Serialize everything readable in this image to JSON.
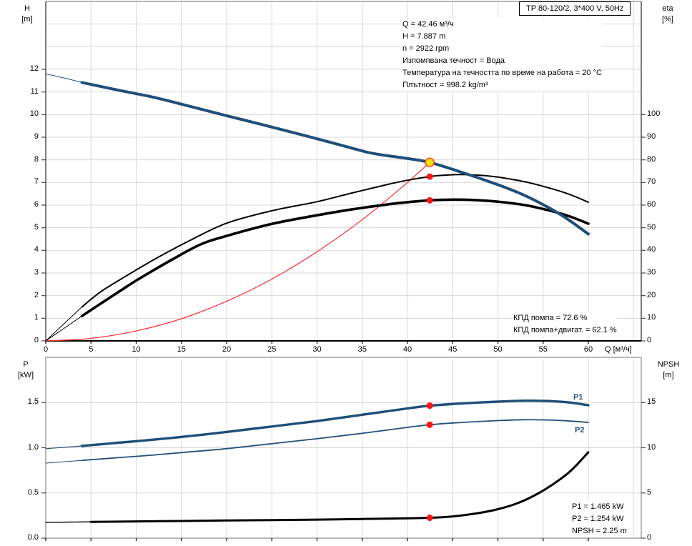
{
  "title_box": "TP 80-120/2, 3*400 V, 50Hz",
  "duty_info": {
    "lines": [
      "Q = 42.46 м³/ч",
      "H = 7.887 m",
      "n = 2922 rpm",
      "Изпомпвана течност = Вода",
      "Температура на течността по време на работа = 20 °C",
      "Плътност = 998.2 kg/m³"
    ]
  },
  "efficiency_info": {
    "lines": [
      "КПД помпа = 72.6 %",
      "КПД помпа+двигат. = 62.1 %"
    ]
  },
  "power_info": {
    "lines": [
      "P1 = 1.465 kW",
      "P2 = 1.254 kW",
      "NPSH = 2.25 m"
    ]
  },
  "curve_labels": {
    "p1": "P1",
    "p2": "P2"
  },
  "axis_titles": {
    "h": [
      "H",
      "[m]"
    ],
    "eta": [
      "eta",
      "[%]"
    ],
    "p": [
      "P",
      "[kW]"
    ],
    "npsh": [
      "NPSH",
      "[m]"
    ],
    "q": "Q [м³/ч]"
  },
  "colors": {
    "curve_blue": "#1f4e79",
    "curve_black": "#000000",
    "curve_red": "#ff2a2a",
    "dot_red": "#ff1414",
    "dot_yellow": "#ffdf00",
    "dot_yellow_stroke": "#ff4633",
    "grid": "#d8d8d8",
    "axis_dark": "#454545",
    "border_gray": "#8a8a8a",
    "label_blue": "#1f4e79",
    "text": "#000000"
  },
  "chart_data": [
    {
      "type": "line",
      "title": "TP 80-120/2, 3*400 V, 50Hz",
      "xlabel": "Q [м³/ч]",
      "ylabel_left": "H [m]",
      "ylabel_right": "eta [%]",
      "xlim": [
        0,
        65.8
      ],
      "ylim_left": [
        0,
        15
      ],
      "ylim_right": [
        0,
        150
      ],
      "grid": true,
      "x_ticks": [
        0,
        5,
        10,
        15,
        20,
        25,
        30,
        35,
        40,
        45,
        50,
        55,
        60
      ],
      "x_grid_values": [
        5,
        10,
        15,
        20,
        25,
        30,
        35,
        40,
        45,
        50,
        55,
        60,
        65
      ],
      "y_ticks_left": [
        0,
        1,
        2,
        3,
        4,
        5,
        6,
        7,
        8,
        9,
        10,
        11,
        12
      ],
      "y_grid_values_left": [
        1,
        2,
        3,
        4,
        5,
        6,
        7,
        8,
        9,
        10,
        11,
        12,
        13,
        14
      ],
      "y_ticks_right": [
        0,
        10,
        20,
        30,
        40,
        50,
        60,
        70,
        80,
        90,
        100
      ],
      "series": [
        {
          "name": "system-curve",
          "axis": "left",
          "color_key": "curve_red",
          "width": 1.2,
          "points": [
            [
              0,
              0
            ],
            [
              5,
              0.11
            ],
            [
              10,
              0.44
            ],
            [
              15,
              0.98
            ],
            [
              20,
              1.75
            ],
            [
              25,
              2.73
            ],
            [
              30,
              3.94
            ],
            [
              35,
              5.36
            ],
            [
              40,
              7.0
            ],
            [
              42.46,
              7.887
            ]
          ]
        },
        {
          "name": "efficiency-pump",
          "axis": "right",
          "color_key": "curve_black",
          "width": 2,
          "thin_until": 4,
          "thin_width": 1,
          "points": [
            [
              0,
              0
            ],
            [
              2,
              7.5
            ],
            [
              4,
              15
            ],
            [
              6,
              21.5
            ],
            [
              8.4,
              27.5
            ],
            [
              12,
              36
            ],
            [
              16,
              44.5
            ],
            [
              20,
              52
            ],
            [
              25,
              57.5
            ],
            [
              30,
              61.5
            ],
            [
              34,
              65.5
            ],
            [
              38,
              69.3
            ],
            [
              40,
              71
            ],
            [
              42.46,
              72.6
            ],
            [
              44,
              73.2
            ],
            [
              46,
              73.5
            ],
            [
              48,
              73.2
            ],
            [
              50,
              72.4
            ],
            [
              53,
              70.3
            ],
            [
              56,
              67.2
            ],
            [
              58,
              64.6
            ],
            [
              60,
              61.3
            ]
          ]
        },
        {
          "name": "efficiency-pump-motor",
          "axis": "right",
          "color_key": "curve_black",
          "width": 3.6,
          "thin_until": 4,
          "thin_width": 1,
          "points": [
            [
              0,
              0
            ],
            [
              2,
              5.5
            ],
            [
              4,
              11
            ],
            [
              8,
              21.5
            ],
            [
              10.35,
              27.5
            ],
            [
              14,
              36
            ],
            [
              17.1,
              42.6
            ],
            [
              20,
              46.4
            ],
            [
              25,
              51.7
            ],
            [
              30,
              55.5
            ],
            [
              34,
              58.2
            ],
            [
              38,
              60.4
            ],
            [
              40,
              61.3
            ],
            [
              42.46,
              62.1
            ],
            [
              44.5,
              62.4
            ],
            [
              47,
              62.3
            ],
            [
              50,
              61.5
            ],
            [
              53,
              60
            ],
            [
              56,
              57.3
            ],
            [
              58,
              54.9
            ],
            [
              60,
              51.8
            ]
          ]
        },
        {
          "name": "pump-curve-hq",
          "axis": "left",
          "color_key": "curve_blue",
          "width": 4,
          "thin_until": 4,
          "thin_width": 1,
          "points": [
            [
              0,
              11.8
            ],
            [
              2,
              11.62
            ],
            [
              4,
              11.42
            ],
            [
              8,
              11.08
            ],
            [
              12,
              10.76
            ],
            [
              16,
              10.36
            ],
            [
              20,
              9.95
            ],
            [
              24,
              9.55
            ],
            [
              28,
              9.14
            ],
            [
              32,
              8.72
            ],
            [
              36,
              8.3
            ],
            [
              40,
              8.06
            ],
            [
              42.46,
              7.887
            ],
            [
              46,
              7.45
            ],
            [
              50,
              6.9
            ],
            [
              53,
              6.42
            ],
            [
              56,
              5.8
            ],
            [
              58,
              5.3
            ],
            [
              60,
              4.72
            ]
          ]
        }
      ],
      "markers": [
        {
          "name": "duty-point",
          "q": 42.46,
          "value": 7.887,
          "axis": "left",
          "style": "duty"
        },
        {
          "name": "efficiency-pump-point",
          "q": 42.46,
          "value": 72.6,
          "axis": "right",
          "style": "point"
        },
        {
          "name": "efficiency-pump-motor-point",
          "q": 42.46,
          "value": 62.1,
          "axis": "right",
          "style": "point"
        }
      ]
    },
    {
      "type": "line",
      "xlabel": "",
      "ylabel_left": "P [kW]",
      "ylabel_right": "NPSH [m]",
      "xlim": [
        0,
        65.8
      ],
      "ylim_left": [
        0,
        2
      ],
      "ylim_right": [
        0,
        20
      ],
      "grid": true,
      "x_ticks": [
        0,
        5,
        10,
        15,
        20,
        25,
        30,
        35,
        40,
        45,
        50,
        55,
        60
      ],
      "x_grid_values": [
        5,
        10,
        15,
        20,
        25,
        30,
        35,
        40,
        45,
        50,
        55,
        60,
        65
      ],
      "y_ticks_left": [
        0,
        0.5,
        1,
        1.5
      ],
      "y_tick_labels_left": [
        "0.0",
        "0.5",
        "1.0",
        "1.5"
      ],
      "y_grid_values_left": [
        0.5,
        1,
        1.5
      ],
      "y_ticks_right": [
        0,
        5,
        10,
        15
      ],
      "series": [
        {
          "name": "power-p1",
          "axis": "left",
          "color_key": "curve_blue",
          "width": 3.4,
          "thin_until": 4,
          "thin_width": 1.2,
          "points": [
            [
              0,
              0.99
            ],
            [
              4,
              1.02
            ],
            [
              8,
              1.055
            ],
            [
              12,
              1.09
            ],
            [
              16,
              1.13
            ],
            [
              20,
              1.175
            ],
            [
              25,
              1.235
            ],
            [
              30,
              1.295
            ],
            [
              35,
              1.365
            ],
            [
              40,
              1.435
            ],
            [
              42.46,
              1.465
            ],
            [
              46,
              1.49
            ],
            [
              50,
              1.51
            ],
            [
              53,
              1.52
            ],
            [
              56,
              1.515
            ],
            [
              58,
              1.5
            ],
            [
              60,
              1.47
            ]
          ]
        },
        {
          "name": "power-p2",
          "axis": "left",
          "color_key": "curve_blue",
          "width": 1.8,
          "thin_until": 4,
          "thin_width": 1,
          "points": [
            [
              0,
              0.83
            ],
            [
              4,
              0.86
            ],
            [
              8,
              0.89
            ],
            [
              12,
              0.92
            ],
            [
              16,
              0.955
            ],
            [
              20,
              0.99
            ],
            [
              25,
              1.045
            ],
            [
              30,
              1.1
            ],
            [
              35,
              1.16
            ],
            [
              40,
              1.225
            ],
            [
              42.46,
              1.254
            ],
            [
              46,
              1.28
            ],
            [
              50,
              1.3
            ],
            [
              53,
              1.31
            ],
            [
              56,
              1.305
            ],
            [
              58,
              1.295
            ],
            [
              60,
              1.28
            ]
          ]
        },
        {
          "name": "npsh-curve",
          "axis": "right",
          "color_key": "curve_black",
          "width": 3,
          "thin_until": 4,
          "thin_width": 1.4,
          "points": [
            [
              0,
              1.75
            ],
            [
              5,
              1.8
            ],
            [
              10,
              1.85
            ],
            [
              15,
              1.9
            ],
            [
              20,
              1.95
            ],
            [
              25,
              2.0
            ],
            [
              30,
              2.05
            ],
            [
              35,
              2.12
            ],
            [
              40,
              2.2
            ],
            [
              42.46,
              2.25
            ],
            [
              45,
              2.4
            ],
            [
              48,
              2.8
            ],
            [
              50,
              3.2
            ],
            [
              52,
              3.8
            ],
            [
              54,
              4.7
            ],
            [
              56,
              5.9
            ],
            [
              58,
              7.4
            ],
            [
              60,
              9.5
            ]
          ]
        }
      ],
      "markers": [
        {
          "name": "p1-point",
          "q": 42.46,
          "value": 1.465,
          "axis": "left",
          "style": "point"
        },
        {
          "name": "p2-point",
          "q": 42.46,
          "value": 1.254,
          "axis": "left",
          "style": "point"
        },
        {
          "name": "npsh-point",
          "q": 42.46,
          "value": 2.25,
          "axis": "right",
          "style": "point"
        }
      ]
    }
  ]
}
